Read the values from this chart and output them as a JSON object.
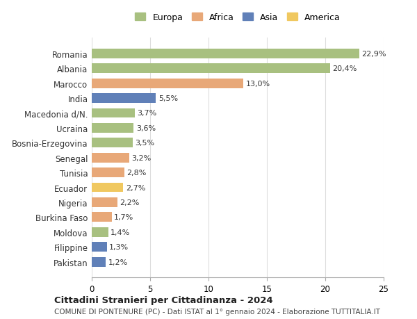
{
  "countries": [
    "Romania",
    "Albania",
    "Marocco",
    "India",
    "Macedonia d/N.",
    "Ucraina",
    "Bosnia-Erzegovina",
    "Senegal",
    "Tunisia",
    "Ecuador",
    "Nigeria",
    "Burkina Faso",
    "Moldova",
    "Filippine",
    "Pakistan"
  ],
  "values": [
    22.9,
    20.4,
    13.0,
    5.5,
    3.7,
    3.6,
    3.5,
    3.2,
    2.8,
    2.7,
    2.2,
    1.7,
    1.4,
    1.3,
    1.2
  ],
  "labels": [
    "22,9%",
    "20,4%",
    "13,0%",
    "5,5%",
    "3,7%",
    "3,6%",
    "3,5%",
    "3,2%",
    "2,8%",
    "2,7%",
    "2,2%",
    "1,7%",
    "1,4%",
    "1,3%",
    "1,2%"
  ],
  "continent": [
    "Europa",
    "Europa",
    "Africa",
    "Asia",
    "Europa",
    "Europa",
    "Europa",
    "Africa",
    "Africa",
    "America",
    "Africa",
    "Africa",
    "Europa",
    "Asia",
    "Asia"
  ],
  "colors": {
    "Europa": "#a8c080",
    "Africa": "#e8a878",
    "Asia": "#6080b8",
    "America": "#f0c860"
  },
  "legend_colors": {
    "Europa": "#a8c080",
    "Africa": "#e8a878",
    "Asia": "#6080b8",
    "America": "#f0c860"
  },
  "xlim": [
    0,
    25
  ],
  "xticks": [
    0,
    5,
    10,
    15,
    20,
    25
  ],
  "title": "Cittadini Stranieri per Cittadinanza - 2024",
  "subtitle": "COMUNE DI PONTENURE (PC) - Dati ISTAT al 1° gennaio 2024 - Elaborazione TUTTITALIA.IT",
  "background_color": "#ffffff",
  "grid_color": "#dddddd",
  "bar_height": 0.65
}
